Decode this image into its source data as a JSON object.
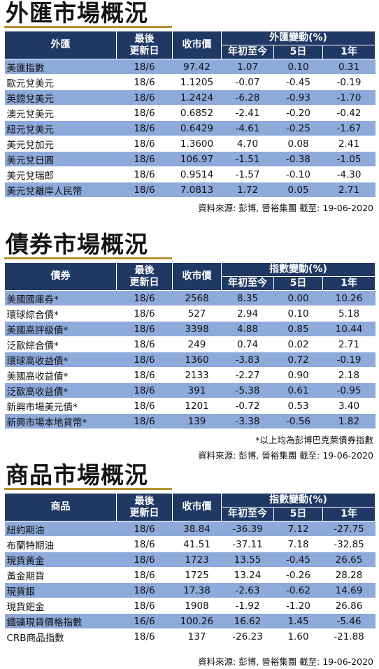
{
  "fx": {
    "title": "外匯市場概況",
    "headers": {
      "name": "外匯",
      "updated": "最後\n更新日",
      "close": "收市價",
      "change_group": "外匯變動(%)",
      "ytd": "年初至今",
      "d5": "5日",
      "y1": "1年"
    },
    "rows": [
      [
        "美匯指數",
        "18/6",
        "97.42",
        "1.07",
        "0.10",
        "0.31"
      ],
      [
        "歐元兌美元",
        "18/6",
        "1.1205",
        "-0.07",
        "-0.45",
        "-0.19"
      ],
      [
        "英鎊兌美元",
        "18/6",
        "1.2424",
        "-6.28",
        "-0.93",
        "-1.70"
      ],
      [
        "澳元兌美元",
        "18/6",
        "0.6852",
        "-2.41",
        "-0.20",
        "-0.42"
      ],
      [
        "紐元兌美元",
        "18/6",
        "0.6429",
        "-4.61",
        "-0.25",
        "-1.67"
      ],
      [
        "美元兌加元",
        "18/6",
        "1.3600",
        "4.70",
        "0.08",
        "2.41"
      ],
      [
        "美元兌日圓",
        "18/6",
        "106.97",
        "-1.51",
        "-0.38",
        "-1.05"
      ],
      [
        "美元兌瑞郎",
        "18/6",
        "0.9514",
        "-1.57",
        "-0.10",
        "-4.30"
      ],
      [
        "美元兌離岸人民幣",
        "18/6",
        "7.0813",
        "1.72",
        "0.05",
        "2.71"
      ]
    ],
    "source": "資料來源: 彭博, 晉裕集團 截至: 19-06-2020"
  },
  "bond": {
    "title": "債券市場概況",
    "headers": {
      "name": "債券",
      "updated": "最後\n更新日",
      "close": "收市價",
      "change_group": "指數變動(%)",
      "ytd": "年初至今",
      "d5": "5日",
      "y1": "1年"
    },
    "rows": [
      [
        "美國國庫券*",
        "18/6",
        "2568",
        "8.35",
        "0.00",
        "10.26"
      ],
      [
        "環球綜合債*",
        "18/6",
        "527",
        "2.94",
        "0.10",
        "5.18"
      ],
      [
        "美國高評級債*",
        "18/6",
        "3398",
        "4.88",
        "0.85",
        "10.44"
      ],
      [
        "泛歐綜合債*",
        "18/6",
        "249",
        "0.74",
        "0.02",
        "2.71"
      ],
      [
        "環球高收益債*",
        "18/6",
        "1360",
        "-3.83",
        "0.72",
        "-0.19"
      ],
      [
        "美國高收益債*",
        "18/6",
        "2133",
        "-2.27",
        "0.90",
        "2.18"
      ],
      [
        "泛歐高收益債*",
        "18/6",
        "391",
        "-5.38",
        "0.61",
        "-0.95"
      ],
      [
        "新興市場美元債*",
        "18/6",
        "1201",
        "-0.72",
        "0.53",
        "3.40"
      ],
      [
        "新興市場本地貨幣*",
        "18/6",
        "139",
        "-3.38",
        "-0.56",
        "1.82"
      ]
    ],
    "note": "*以上均為彭博巴克萊債券指數",
    "source": "資料來源: 彭博, 晉裕集團 截至: 19-06-2020"
  },
  "commodity": {
    "title": "商品市場概況",
    "headers": {
      "name": "商品",
      "updated": "最後\n更新日",
      "close": "收市價",
      "change_group": "指數變動(%)",
      "ytd": "年初至今",
      "d5": "5日",
      "y1": "1年"
    },
    "rows": [
      [
        "紐約期油",
        "18/6",
        "38.84",
        "-36.39",
        "7.12",
        "-27.75"
      ],
      [
        "布蘭特期油",
        "18/6",
        "41.51",
        "-37.11",
        "7.18",
        "-32.85"
      ],
      [
        "現貨黃金",
        "18/6",
        "1723",
        "13.55",
        "-0.45",
        "26.65"
      ],
      [
        "黃金期貨",
        "18/6",
        "1725",
        "13.24",
        "-0.26",
        "28.28"
      ],
      [
        "現貨銀",
        "18/6",
        "17.38",
        "-2.63",
        "-0.62",
        "14.69"
      ],
      [
        "現貨鈀金",
        "18/6",
        "1908",
        "-1.92",
        "-1.20",
        "26.86"
      ],
      [
        "鐵礦現貨價格指數",
        "16/6",
        "100.26",
        "16.62",
        "1.45",
        "-5.46"
      ],
      [
        "CRB商品指數",
        "18/6",
        "137",
        "-26.23",
        "1.60",
        "-21.88"
      ]
    ],
    "source": "資料來源: 彭博, 晉裕集團 截至: 19-06-2020"
  },
  "colors": {
    "header_bg": "#1f3864",
    "row_shade": "#8eaadb",
    "title_underline": "#b8932e"
  }
}
